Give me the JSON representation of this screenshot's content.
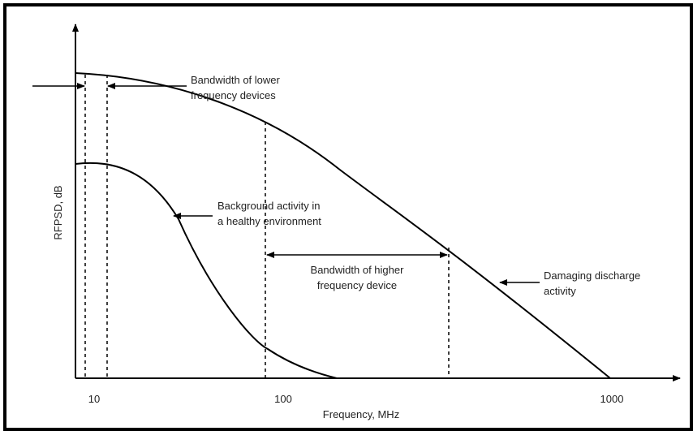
{
  "axes": {
    "x_label": "Frequency, MHz",
    "y_label": "RFPSD, dB",
    "x_ticks": [
      "10",
      "100",
      "1000"
    ]
  },
  "annotations": {
    "lower_band": [
      "Bandwidth of lower",
      "frequency devices"
    ],
    "background": [
      "Background activity in",
      "a healthy environment"
    ],
    "higher_band": [
      "Bandwidth of higher",
      "frequency device"
    ],
    "damaging": [
      "Damaging discharge",
      "activity"
    ]
  },
  "colors": {
    "line": "#000000",
    "text": "#222222",
    "frame": "#000000"
  }
}
